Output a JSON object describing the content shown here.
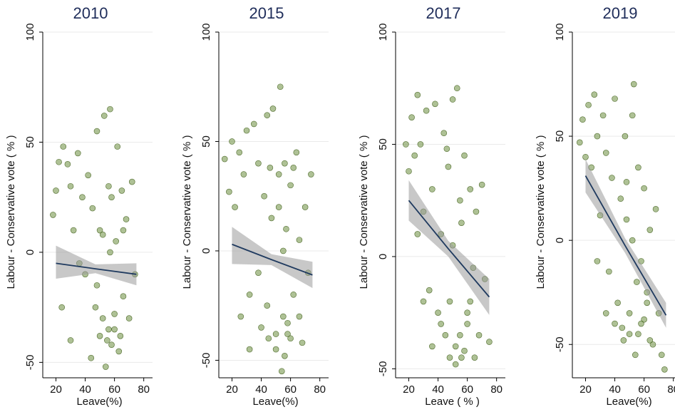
{
  "chart_data": [
    {
      "type": "scatter",
      "title": "2010",
      "x_label": "Leave(%)",
      "y_label": "Labour - Conservative vote ( % )",
      "color": "#6b8e3e",
      "grid": true,
      "xlim": [
        11,
        86
      ],
      "ylim": [
        -57,
        100
      ],
      "xticks": [
        20,
        40,
        60,
        80
      ],
      "yticks": [
        -50,
        0,
        50,
        100
      ],
      "x": [
        18,
        20,
        22,
        25,
        28,
        30,
        32,
        35,
        38,
        40,
        42,
        45,
        47,
        48,
        50,
        52,
        53,
        55,
        56,
        57,
        58,
        60,
        61,
        62,
        63,
        65,
        66,
        68,
        70,
        72,
        74,
        24,
        30,
        36,
        44,
        50,
        54,
        56,
        58,
        60,
        52,
        57,
        64,
        48,
        66
      ],
      "y": [
        17,
        28,
        41,
        48,
        40,
        30,
        10,
        45,
        25,
        -10,
        35,
        20,
        -25,
        55,
        10,
        -30,
        62,
        -40,
        30,
        65,
        25,
        -35,
        5,
        48,
        -45,
        28,
        -20,
        15,
        -30,
        32,
        -10,
        -25,
        -40,
        -5,
        -48,
        -38,
        -52,
        -35,
        -42,
        -28,
        8,
        0,
        -38,
        -15,
        10
      ],
      "fit": {
        "x": [
          20,
          47,
          75
        ],
        "values": [
          -5,
          -7.5,
          -10
        ],
        "lower": [
          -12,
          -9.5,
          -15
        ],
        "upper": [
          3,
          -5.5,
          -5
        ]
      }
    },
    {
      "type": "scatter",
      "title": "2015",
      "x_label": "Leave(%)",
      "y_label": "Labour - Conservative vote ( % )",
      "color": "#6b8e3e",
      "grid": true,
      "xlim": [
        11,
        86
      ],
      "ylim": [
        -58,
        100
      ],
      "xticks": [
        20,
        40,
        60,
        80
      ],
      "yticks": [
        -50,
        0,
        50,
        100
      ],
      "x": [
        15,
        18,
        20,
        22,
        25,
        28,
        30,
        32,
        35,
        38,
        40,
        42,
        44,
        45,
        47,
        48,
        50,
        52,
        53,
        55,
        56,
        57,
        58,
        60,
        62,
        64,
        66,
        68,
        70,
        72,
        74,
        26,
        32,
        38,
        44,
        50,
        54,
        56,
        58,
        60,
        52,
        46,
        62,
        66,
        55
      ],
      "y": [
        42,
        27,
        50,
        20,
        45,
        35,
        55,
        -20,
        58,
        40,
        -35,
        25,
        62,
        -40,
        15,
        65,
        -45,
        35,
        75,
        -30,
        40,
        10,
        -38,
        30,
        -20,
        45,
        5,
        -42,
        20,
        -10,
        35,
        -30,
        -45,
        -10,
        -25,
        -38,
        -55,
        -48,
        -33,
        -40,
        20,
        38,
        38,
        -30,
        0
      ],
      "fit": {
        "x": [
          20,
          47,
          75
        ],
        "values": [
          3,
          -4,
          -11
        ],
        "lower": [
          -6,
          -6.5,
          -17
        ],
        "upper": [
          11,
          -1.5,
          -5
        ]
      }
    },
    {
      "type": "scatter",
      "title": "2017",
      "x_label": "Leave ( % )",
      "y_label": "Labour - Conservative vote ( % )",
      "color": "#6b8e3e",
      "grid": true,
      "xlim": [
        11,
        86
      ],
      "ylim": [
        -54,
        100
      ],
      "xticks": [
        20,
        40,
        60,
        80
      ],
      "yticks": [
        -50,
        0,
        50,
        100
      ],
      "x": [
        18,
        20,
        22,
        24,
        26,
        28,
        30,
        32,
        34,
        36,
        38,
        40,
        42,
        44,
        45,
        47,
        48,
        50,
        52,
        53,
        55,
        56,
        58,
        60,
        62,
        64,
        66,
        68,
        70,
        72,
        75,
        26,
        30,
        36,
        42,
        48,
        52,
        55,
        58,
        60,
        50,
        56,
        62,
        65,
        46
      ],
      "y": [
        50,
        38,
        62,
        45,
        72,
        50,
        20,
        65,
        -15,
        30,
        68,
        -25,
        10,
        55,
        -35,
        40,
        -20,
        70,
        -40,
        75,
        25,
        -45,
        45,
        -30,
        30,
        -5,
        20,
        -35,
        32,
        -10,
        -38,
        10,
        -20,
        -40,
        -30,
        -45,
        -48,
        -35,
        -42,
        -25,
        5,
        15,
        -20,
        -45,
        48
      ],
      "fit": {
        "x": [
          20,
          47,
          75
        ],
        "values": [
          25,
          3.5,
          -18
        ],
        "lower": [
          16,
          0,
          -26
        ],
        "upper": [
          34,
          7,
          -10
        ]
      }
    },
    {
      "type": "scatter",
      "title": "2019",
      "x_label": "Leave(%)",
      "y_label": "Labour - Conservative vote ( % )",
      "color": "#6b8e3e",
      "grid": true,
      "xlim": [
        11,
        86
      ],
      "ylim": [
        -66,
        100
      ],
      "xticks": [
        20,
        40,
        60,
        80
      ],
      "yticks": [
        -50,
        0,
        50,
        100
      ],
      "x": [
        16,
        18,
        20,
        22,
        24,
        26,
        28,
        30,
        32,
        34,
        36,
        38,
        40,
        42,
        44,
        45,
        47,
        48,
        50,
        52,
        53,
        55,
        56,
        58,
        60,
        62,
        64,
        66,
        68,
        70,
        72,
        74,
        28,
        34,
        40,
        46,
        50,
        54,
        56,
        60,
        52,
        58,
        62,
        64,
        48
      ],
      "y": [
        47,
        58,
        40,
        65,
        35,
        70,
        50,
        12,
        60,
        42,
        -15,
        30,
        68,
        -30,
        20,
        -42,
        50,
        10,
        -45,
        60,
        75,
        -20,
        35,
        -40,
        25,
        -30,
        5,
        -50,
        15,
        -35,
        -55,
        -62,
        -10,
        -35,
        -40,
        -48,
        -35,
        -55,
        -45,
        -38,
        0,
        -10,
        -25,
        -48,
        28
      ],
      "fit": {
        "x": [
          20,
          47,
          75
        ],
        "values": [
          31,
          -2.5,
          -36
        ],
        "lower": [
          23,
          -6,
          -42
        ],
        "upper": [
          39,
          1,
          -30
        ]
      }
    }
  ]
}
